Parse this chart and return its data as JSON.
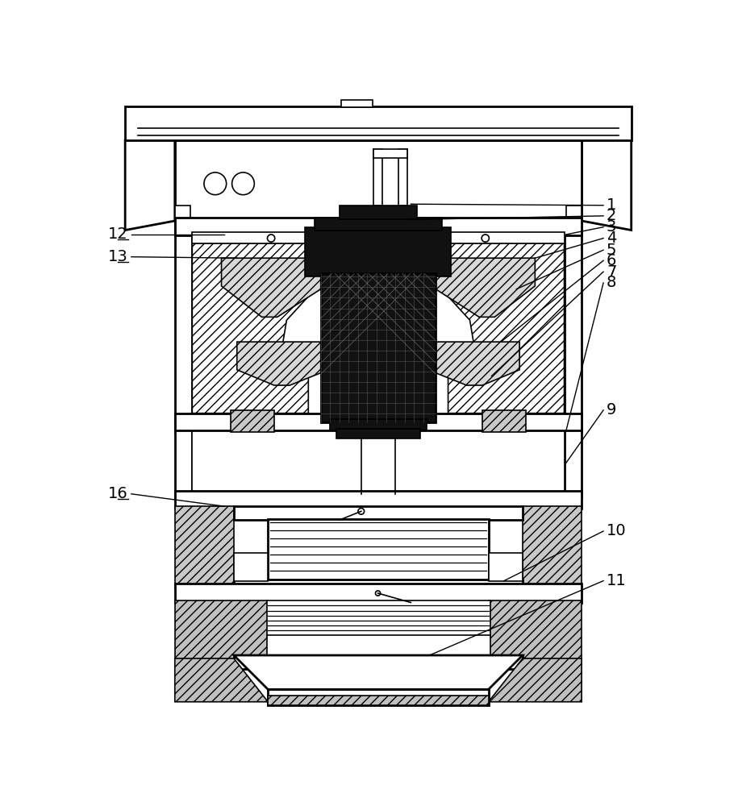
{
  "bg_color": "#ffffff",
  "lw": 1.2,
  "lw2": 2.0,
  "fig_width": 9.15,
  "fig_height": 10.0,
  "right_labels": [
    [
      "1",
      [
        555,
        860
      ],
      [
        810,
        835
      ]
    ],
    [
      "2",
      [
        545,
        848
      ],
      [
        810,
        818
      ]
    ],
    [
      "3",
      [
        730,
        828
      ],
      [
        810,
        793
      ]
    ],
    [
      "4",
      [
        680,
        795
      ],
      [
        810,
        768
      ]
    ],
    [
      "5",
      [
        660,
        755
      ],
      [
        810,
        743
      ]
    ],
    [
      "6",
      [
        640,
        705
      ],
      [
        810,
        718
      ]
    ],
    [
      "7",
      [
        625,
        640
      ],
      [
        810,
        692
      ]
    ],
    [
      "8",
      [
        730,
        545
      ],
      [
        810,
        660
      ]
    ],
    [
      "9",
      [
        700,
        490
      ],
      [
        810,
        505
      ]
    ],
    [
      "10",
      [
        640,
        255
      ],
      [
        810,
        280
      ]
    ],
    [
      "11",
      [
        580,
        130
      ],
      [
        810,
        220
      ]
    ]
  ],
  "left_labels": [
    [
      "12",
      [
        210,
        845
      ],
      [
        55,
        828
      ],
      false
    ],
    [
      "13",
      [
        235,
        795
      ],
      [
        55,
        793
      ],
      false
    ],
    [
      "16",
      [
        215,
        640
      ],
      [
        55,
        505
      ],
      false
    ]
  ]
}
